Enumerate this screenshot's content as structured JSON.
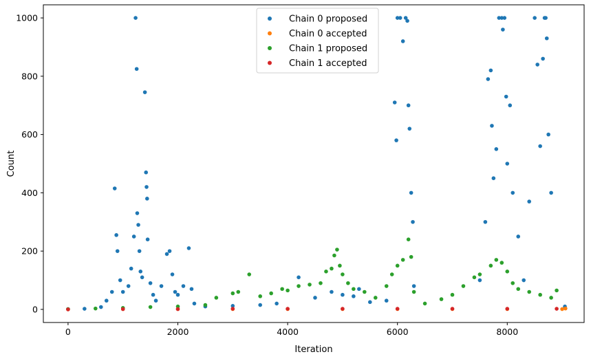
{
  "chart_data": {
    "type": "scatter",
    "xlabel": "Iteration",
    "ylabel": "Count",
    "xlim": [
      -450,
      9400
    ],
    "ylim": [
      -45,
      1045
    ],
    "x_ticks": [
      0,
      2000,
      4000,
      6000,
      8000
    ],
    "y_ticks": [
      0,
      200,
      400,
      600,
      800,
      1000
    ],
    "x_tick_labels": [
      "0",
      "2000",
      "4000",
      "6000",
      "8000"
    ],
    "y_tick_labels": [
      "0",
      "200",
      "400",
      "600",
      "800",
      "1000"
    ],
    "grid": false,
    "legend_position": "top-center",
    "series": [
      {
        "name": "Chain 0 proposed",
        "color": "#1f77b4",
        "points": [
          [
            0,
            1
          ],
          [
            300,
            2
          ],
          [
            600,
            8
          ],
          [
            700,
            30
          ],
          [
            800,
            60
          ],
          [
            850,
            415
          ],
          [
            880,
            255
          ],
          [
            900,
            200
          ],
          [
            950,
            100
          ],
          [
            1000,
            60
          ],
          [
            1100,
            80
          ],
          [
            1150,
            140
          ],
          [
            1200,
            250
          ],
          [
            1230,
            1000
          ],
          [
            1250,
            825
          ],
          [
            1260,
            330
          ],
          [
            1280,
            290
          ],
          [
            1300,
            200
          ],
          [
            1320,
            130
          ],
          [
            1350,
            110
          ],
          [
            1400,
            745
          ],
          [
            1420,
            470
          ],
          [
            1430,
            420
          ],
          [
            1440,
            380
          ],
          [
            1450,
            240
          ],
          [
            1500,
            90
          ],
          [
            1550,
            50
          ],
          [
            1600,
            30
          ],
          [
            1700,
            80
          ],
          [
            1800,
            190
          ],
          [
            1850,
            200
          ],
          [
            1900,
            120
          ],
          [
            1950,
            60
          ],
          [
            2000,
            50
          ],
          [
            2100,
            80
          ],
          [
            2200,
            210
          ],
          [
            2250,
            70
          ],
          [
            2300,
            20
          ],
          [
            2500,
            10
          ],
          [
            3000,
            12
          ],
          [
            3500,
            15
          ],
          [
            3800,
            20
          ],
          [
            4200,
            110
          ],
          [
            4500,
            40
          ],
          [
            4800,
            60
          ],
          [
            5000,
            50
          ],
          [
            5200,
            45
          ],
          [
            5300,
            70
          ],
          [
            5500,
            25
          ],
          [
            5800,
            30
          ],
          [
            5950,
            710
          ],
          [
            5980,
            580
          ],
          [
            6000,
            1000
          ],
          [
            6050,
            1000
          ],
          [
            6100,
            920
          ],
          [
            6150,
            1000
          ],
          [
            6180,
            990
          ],
          [
            6200,
            700
          ],
          [
            6220,
            620
          ],
          [
            6250,
            400
          ],
          [
            6280,
            300
          ],
          [
            6300,
            80
          ],
          [
            7500,
            100
          ],
          [
            7600,
            300
          ],
          [
            7650,
            790
          ],
          [
            7700,
            820
          ],
          [
            7720,
            630
          ],
          [
            7750,
            450
          ],
          [
            7800,
            550
          ],
          [
            7850,
            1000
          ],
          [
            7900,
            1000
          ],
          [
            7920,
            960
          ],
          [
            7950,
            1000
          ],
          [
            7980,
            730
          ],
          [
            8000,
            500
          ],
          [
            8050,
            700
          ],
          [
            8100,
            400
          ],
          [
            8200,
            250
          ],
          [
            8300,
            100
          ],
          [
            8400,
            370
          ],
          [
            8500,
            1000
          ],
          [
            8550,
            840
          ],
          [
            8600,
            560
          ],
          [
            8650,
            860
          ],
          [
            8680,
            1000
          ],
          [
            8700,
            1000
          ],
          [
            8720,
            930
          ],
          [
            8750,
            600
          ],
          [
            8800,
            400
          ],
          [
            9050,
            10
          ]
        ]
      },
      {
        "name": "Chain 0 accepted",
        "color": "#ff7f0e",
        "points": [
          [
            0,
            0
          ],
          [
            1000,
            1
          ],
          [
            2000,
            1
          ],
          [
            3000,
            1
          ],
          [
            4000,
            1
          ],
          [
            5000,
            1
          ],
          [
            6000,
            1
          ],
          [
            7000,
            1
          ],
          [
            8000,
            1
          ],
          [
            9000,
            1
          ],
          [
            9060,
            3
          ]
        ]
      },
      {
        "name": "Chain 1 proposed",
        "color": "#2ca02c",
        "points": [
          [
            0,
            1
          ],
          [
            500,
            3
          ],
          [
            1000,
            5
          ],
          [
            1500,
            8
          ],
          [
            2000,
            10
          ],
          [
            2500,
            15
          ],
          [
            2700,
            40
          ],
          [
            3000,
            55
          ],
          [
            3100,
            60
          ],
          [
            3300,
            120
          ],
          [
            3500,
            45
          ],
          [
            3700,
            55
          ],
          [
            3900,
            70
          ],
          [
            4000,
            65
          ],
          [
            4200,
            80
          ],
          [
            4400,
            85
          ],
          [
            4600,
            90
          ],
          [
            4700,
            130
          ],
          [
            4800,
            140
          ],
          [
            4850,
            185
          ],
          [
            4900,
            205
          ],
          [
            4950,
            150
          ],
          [
            5000,
            120
          ],
          [
            5100,
            90
          ],
          [
            5200,
            70
          ],
          [
            5400,
            60
          ],
          [
            5600,
            40
          ],
          [
            5800,
            80
          ],
          [
            5900,
            120
          ],
          [
            6000,
            150
          ],
          [
            6100,
            170
          ],
          [
            6200,
            240
          ],
          [
            6250,
            180
          ],
          [
            6300,
            60
          ],
          [
            6500,
            20
          ],
          [
            6800,
            35
          ],
          [
            7000,
            50
          ],
          [
            7200,
            80
          ],
          [
            7400,
            110
          ],
          [
            7500,
            120
          ],
          [
            7700,
            150
          ],
          [
            7800,
            170
          ],
          [
            7900,
            160
          ],
          [
            8000,
            130
          ],
          [
            8100,
            90
          ],
          [
            8200,
            70
          ],
          [
            8400,
            60
          ],
          [
            8600,
            50
          ],
          [
            8800,
            40
          ],
          [
            8900,
            65
          ]
        ]
      },
      {
        "name": "Chain 1 accepted",
        "color": "#d62728",
        "points": [
          [
            0,
            0
          ],
          [
            1000,
            1
          ],
          [
            2000,
            1
          ],
          [
            3000,
            2
          ],
          [
            4000,
            2
          ],
          [
            5000,
            2
          ],
          [
            6000,
            2
          ],
          [
            7000,
            2
          ],
          [
            8000,
            2
          ],
          [
            8900,
            2
          ]
        ]
      }
    ]
  }
}
